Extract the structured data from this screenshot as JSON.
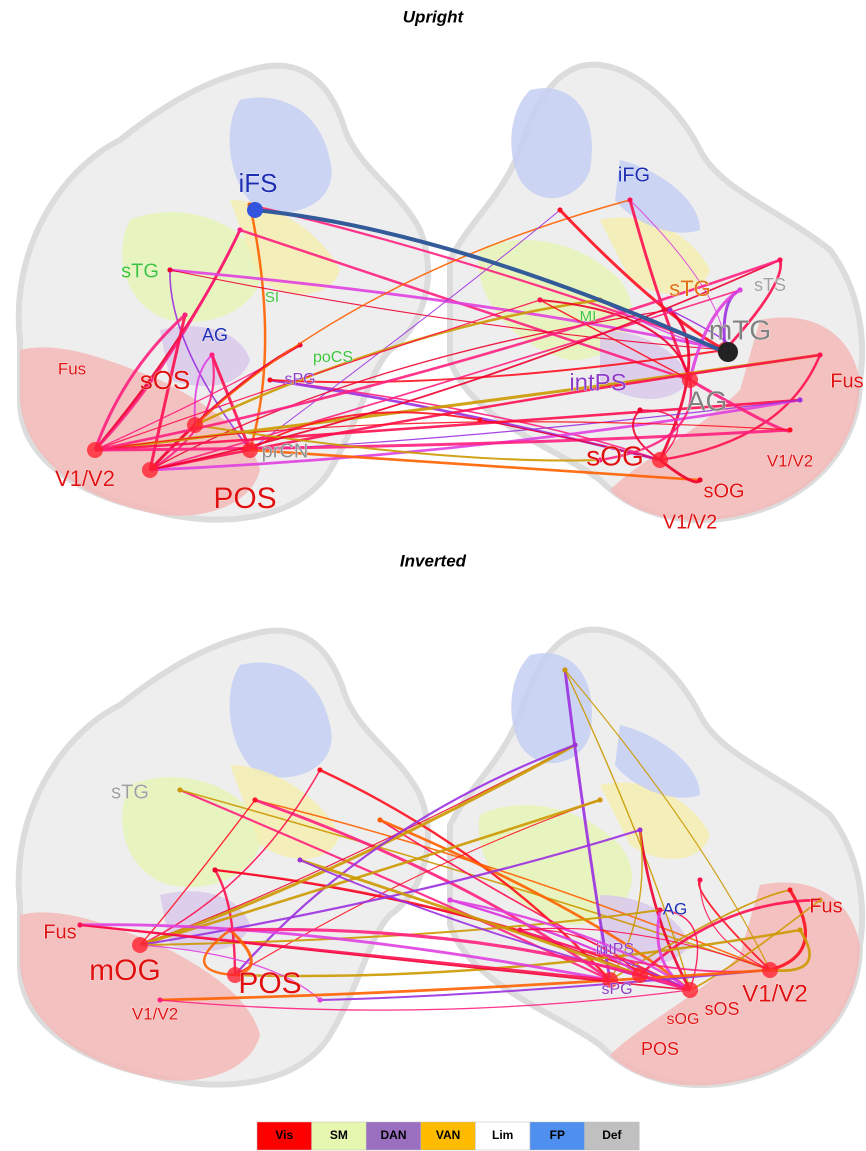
{
  "panels": [
    {
      "title": "Upright",
      "labels": [
        {
          "text": "iFS",
          "color": "#1c2db4"
        },
        {
          "text": "iFG",
          "color": "#1c2db4"
        },
        {
          "text": "sTG",
          "color": "#3cc43c"
        },
        {
          "text": "SI",
          "color": "#3cc43c"
        },
        {
          "text": "AG",
          "color": "#1c2db4"
        },
        {
          "text": "poCS",
          "color": "#3cc43c"
        },
        {
          "text": "sPG",
          "color": "#8c3cc8"
        },
        {
          "text": "Fus",
          "color": "#e01010"
        },
        {
          "text": "sOS",
          "color": "#e01010"
        },
        {
          "text": "prCN",
          "color": "#909090"
        },
        {
          "text": "V1/V2",
          "color": "#e01010"
        },
        {
          "text": "POS",
          "color": "#e01010"
        },
        {
          "text": "sTG",
          "color": "#e07010"
        },
        {
          "text": "sTS",
          "color": "#a0a0a0"
        },
        {
          "text": "MI",
          "color": "#3cc43c"
        },
        {
          "text": "mTG",
          "color": "#808080"
        },
        {
          "text": "Fus",
          "color": "#e01010"
        },
        {
          "text": "intPS",
          "color": "#8c3cc8"
        },
        {
          "text": "AG",
          "color": "#808080"
        },
        {
          "text": "sOG",
          "color": "#e01010"
        },
        {
          "text": "V1/V2",
          "color": "#e01010"
        },
        {
          "text": "sOG",
          "color": "#e01010"
        },
        {
          "text": "V1/V2",
          "color": "#e01010"
        }
      ]
    },
    {
      "title": "Inverted",
      "labels": [
        {
          "text": "sTG",
          "color": "#a0a0a0"
        },
        {
          "text": "Fus",
          "color": "#e01010"
        },
        {
          "text": "mOG",
          "color": "#e01010"
        },
        {
          "text": "POS",
          "color": "#e01010"
        },
        {
          "text": "V1/V2",
          "color": "#e01010"
        },
        {
          "text": "AG",
          "color": "#1c2db4"
        },
        {
          "text": "Fus",
          "color": "#e01010"
        },
        {
          "text": "intPS",
          "color": "#8c3cc8"
        },
        {
          "text": "sPG",
          "color": "#8c3cc8"
        },
        {
          "text": "V1/V2",
          "color": "#e01010"
        },
        {
          "text": "sOS",
          "color": "#e01010"
        },
        {
          "text": "sOG",
          "color": "#e01010"
        },
        {
          "text": "POS",
          "color": "#e01010"
        }
      ]
    }
  ],
  "legend": [
    {
      "label": "Vis",
      "color": "#ff0000"
    },
    {
      "label": "SM",
      "color": "#e6f7b0"
    },
    {
      "label": "DAN",
      "color": "#9b6fc0"
    },
    {
      "label": "VAN",
      "color": "#ffbb00"
    },
    {
      "label": "Lim",
      "color": "#ffffff"
    },
    {
      "label": "FP",
      "color": "#4e8ff0"
    },
    {
      "label": "Def",
      "color": "#c0c0c0"
    }
  ]
}
